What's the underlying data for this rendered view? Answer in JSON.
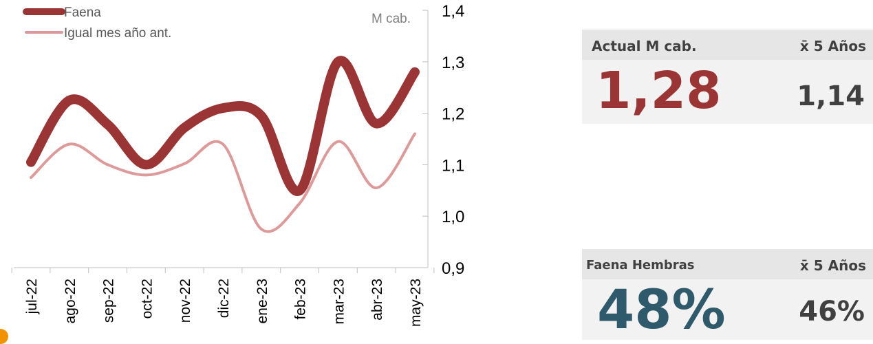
{
  "chart_data": {
    "type": "line",
    "categories": [
      "jul-22",
      "ago-22",
      "sep-22",
      "oct-22",
      "nov-22",
      "dic-22",
      "ene-23",
      "feb-23",
      "mar-23",
      "abr-23",
      "may-23"
    ],
    "series": [
      {
        "name": "Faena",
        "color": "#9b3535",
        "values": [
          1.105,
          1.225,
          1.178,
          1.1,
          1.172,
          1.21,
          1.195,
          1.05,
          1.3,
          1.18,
          1.28
        ]
      },
      {
        "name": "Igual mes año ant.",
        "color": "#de9a9a",
        "values": [
          1.075,
          1.14,
          1.1,
          1.08,
          1.102,
          1.14,
          0.975,
          1.025,
          1.145,
          1.055,
          1.16
        ]
      }
    ],
    "y_unit_label": "M cab.",
    "ylim": [
      0.9,
      1.4
    ],
    "yticks": [
      "0,9",
      "1,0",
      "1,1",
      "1,2",
      "1,3",
      "1,4"
    ],
    "y_axis_position": "right",
    "legend_position": "top-left"
  },
  "kpi_cards": [
    {
      "label": "Actual M cab.",
      "avg_label": "x̄ 5 Años",
      "value": "1,28",
      "avg_value": "1,14",
      "value_color": "#9b3535"
    },
    {
      "label": "Faena Hembras",
      "avg_label": "x̄ 5 Años",
      "value": "48%",
      "avg_value": "46%",
      "value_color": "#2e5a6b"
    }
  ]
}
